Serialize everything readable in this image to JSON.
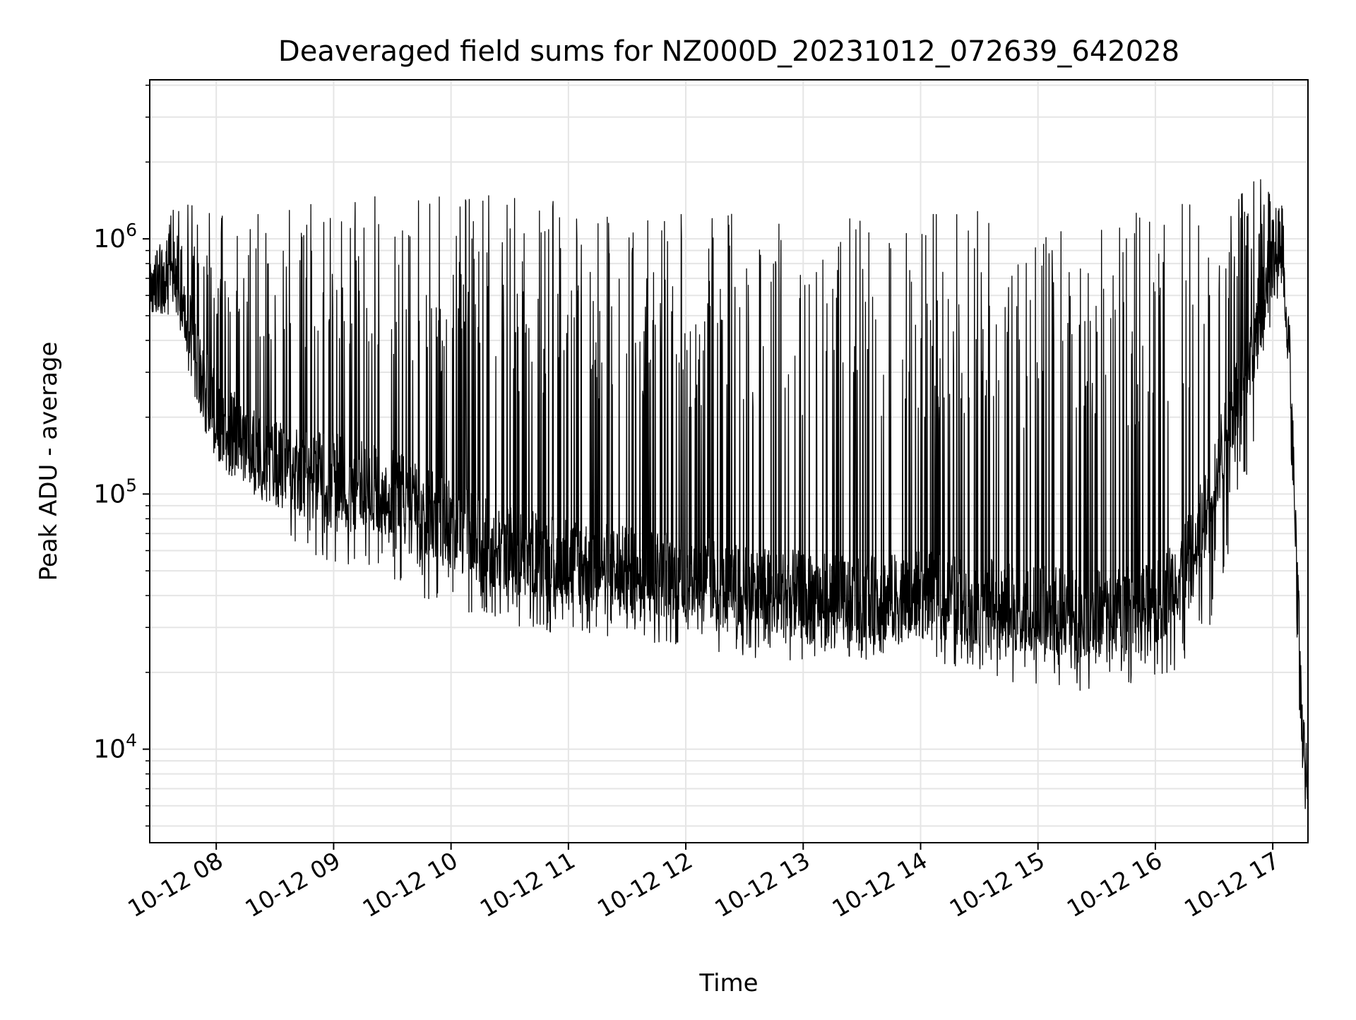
{
  "chart_data": {
    "type": "line",
    "title": "Deaveraged field sums for NZ000D_20231012_072639_642028",
    "xlabel": "Time",
    "ylabel": "Peak ADU - average",
    "yscale": "log",
    "ylim": [
      4300,
      4200000
    ],
    "xlim": [
      "2023-10-12 07:26",
      "2023-10-12 17:18"
    ],
    "grid": true,
    "x_ticks": [
      {
        "value": "2023-10-12 08:00",
        "label": "10-12 08"
      },
      {
        "value": "2023-10-12 09:00",
        "label": "10-12 09"
      },
      {
        "value": "2023-10-12 10:00",
        "label": "10-12 10"
      },
      {
        "value": "2023-10-12 11:00",
        "label": "10-12 11"
      },
      {
        "value": "2023-10-12 12:00",
        "label": "10-12 12"
      },
      {
        "value": "2023-10-12 13:00",
        "label": "10-12 13"
      },
      {
        "value": "2023-10-12 14:00",
        "label": "10-12 14"
      },
      {
        "value": "2023-10-12 15:00",
        "label": "10-12 15"
      },
      {
        "value": "2023-10-12 16:00",
        "label": "10-12 16"
      },
      {
        "value": "2023-10-12 17:00",
        "label": "10-12 17"
      }
    ],
    "y_ticks": [
      {
        "value": 10000,
        "base": "10",
        "exp": "4"
      },
      {
        "value": 100000,
        "base": "10",
        "exp": "5"
      },
      {
        "value": 1000000,
        "base": "10",
        "exp": "6"
      }
    ],
    "line_color": "#000000",
    "envelope": {
      "time": [
        "2023-10-12 07:26",
        "2023-10-12 07:40",
        "2023-10-12 07:52",
        "2023-10-12 08:00",
        "2023-10-12 08:20",
        "2023-10-12 08:40",
        "2023-10-12 09:00",
        "2023-10-12 09:30",
        "2023-10-12 10:00",
        "2023-10-12 10:30",
        "2023-10-12 11:00",
        "2023-10-12 11:30",
        "2023-10-12 12:00",
        "2023-10-12 12:30",
        "2023-10-12 13:00",
        "2023-10-12 13:30",
        "2023-10-12 14:00",
        "2023-10-12 14:30",
        "2023-10-12 15:00",
        "2023-10-12 15:30",
        "2023-10-12 16:00",
        "2023-10-12 16:20",
        "2023-10-12 16:35",
        "2023-10-12 16:50",
        "2023-10-12 17:00",
        "2023-10-12 17:05",
        "2023-10-12 17:08",
        "2023-10-12 17:12",
        "2023-10-12 17:15",
        "2023-10-12 17:18"
      ],
      "upper": [
        850000,
        1400000,
        1500000,
        1300000,
        1300000,
        1400000,
        1400000,
        1500000,
        1500000,
        1500000,
        1400000,
        1400000,
        1300000,
        1300000,
        1200000,
        1200000,
        1300000,
        1300000,
        1300000,
        1300000,
        1300000,
        1400000,
        1600000,
        1700000,
        2000000,
        1500000,
        600000,
        100000,
        15000,
        12000
      ],
      "base": [
        600000,
        700000,
        280000,
        200000,
        140000,
        120000,
        120000,
        100000,
        75000,
        60000,
        55000,
        50000,
        48000,
        42000,
        40000,
        38000,
        40000,
        38000,
        35000,
        34000,
        36000,
        60000,
        160000,
        400000,
        900000,
        900000,
        400000,
        50000,
        10000,
        10000
      ],
      "lower": [
        520000,
        500000,
        180000,
        130000,
        90000,
        65000,
        50000,
        42000,
        36000,
        30000,
        28000,
        27000,
        25000,
        23000,
        22000,
        22000,
        22000,
        19000,
        17000,
        17000,
        19000,
        22000,
        40000,
        150000,
        500000,
        700000,
        300000,
        15000,
        6000,
        5500
      ]
    }
  }
}
